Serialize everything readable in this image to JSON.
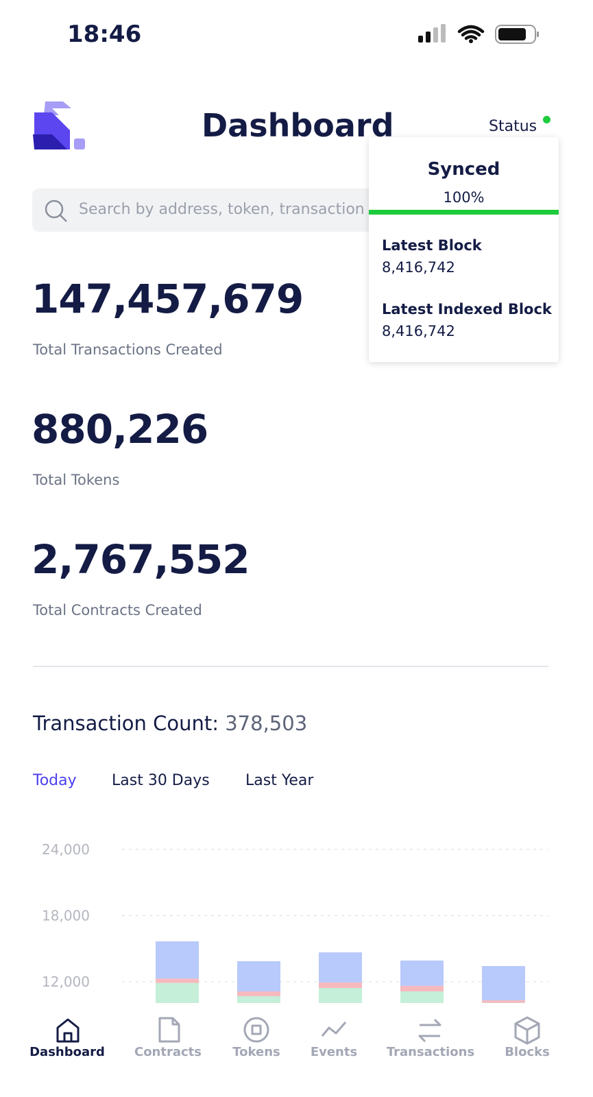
{
  "status_bar": {
    "time": "18:46"
  },
  "header": {
    "title": "Dashboard",
    "status_label": "Status"
  },
  "search": {
    "placeholder": "Search by address, token, transaction"
  },
  "status_popup": {
    "state": "Synced",
    "percent": "100%",
    "latest_block_label": "Latest Block",
    "latest_block": "8,416,742",
    "latest_indexed_label": "Latest Indexed Block",
    "latest_indexed": "8,416,742"
  },
  "stats": [
    {
      "value": "147,457,679",
      "label": "Total Transactions Created"
    },
    {
      "value": "880,226",
      "label": "Total Tokens"
    },
    {
      "value": "2,767,552",
      "label": "Total Contracts Created"
    }
  ],
  "transaction_count": {
    "label": "Transaction Count:",
    "value": "378,503"
  },
  "tabs": [
    "Today",
    "Last 30 Days",
    "Last Year"
  ],
  "chart_data": {
    "type": "bar",
    "stacked": true,
    "categories": [
      null,
      null,
      null,
      null,
      null
    ],
    "series": [
      {
        "color": "#c5efd8",
        "values": [
          11900,
          10700,
          11440,
          11130,
          10100
        ]
      },
      {
        "color": "#f6b9be",
        "values": [
          400,
          430,
          500,
          500,
          220
        ]
      },
      {
        "color": "#b8c9fb",
        "values": [
          3370,
          2735,
          2730,
          2300,
          3110
        ]
      }
    ],
    "ylim": [
      0,
      24000
    ],
    "yticks": [
      {
        "value": 12000,
        "label": "12,000"
      },
      {
        "value": 18000,
        "label": "18,000"
      },
      {
        "value": 24000,
        "label": "24,000"
      }
    ],
    "grid": true
  },
  "nav": [
    "Dashboard",
    "Contracts",
    "Tokens",
    "Events",
    "Transactions",
    "Blocks"
  ]
}
